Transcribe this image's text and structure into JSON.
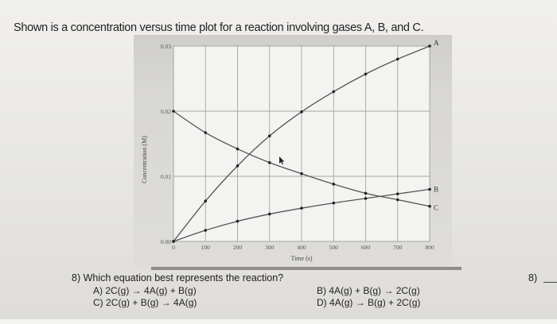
{
  "intro_text": "Shown is a concentration versus time plot for a reaction involving gases A, B, and C.",
  "question": {
    "number_label": "8)",
    "text": "8) Which equation best represents the reaction?",
    "options": [
      {
        "label": "A)",
        "equation": "2C(g) → 4A(g) + B(g)"
      },
      {
        "label": "B)",
        "equation": "4A(g) + B(g) → 2C(g)"
      },
      {
        "label": "C)",
        "equation": "2C(g) + B(g) → 4A(g)"
      },
      {
        "label": "D)",
        "equation": "4A(g) → B(g) + 2C(g)"
      }
    ],
    "answer_blank_label": "8)"
  },
  "chart_data": {
    "type": "line",
    "title": "",
    "xlabel": "Time (s)",
    "ylabel": "Concentration (M)",
    "x": [
      0,
      100,
      200,
      300,
      400,
      500,
      600,
      700,
      800
    ],
    "xlim": [
      0,
      800
    ],
    "ylim": [
      0.0,
      0.03
    ],
    "x_ticks": [
      "0",
      "100",
      "200",
      "300",
      "400",
      "500",
      "600",
      "700",
      "800"
    ],
    "y_ticks": [
      "0.00",
      "0.01",
      "0.02",
      "0.03"
    ],
    "grid": true,
    "legend_position": "inline labels at right end of curves",
    "series": [
      {
        "name": "A",
        "values": [
          0.0,
          0.0062,
          0.0116,
          0.0162,
          0.0199,
          0.023,
          0.0257,
          0.028,
          0.03
        ]
      },
      {
        "name": "B",
        "values": [
          0.0,
          0.0017,
          0.0031,
          0.0042,
          0.0051,
          0.0059,
          0.0066,
          0.0073,
          0.008
        ]
      },
      {
        "name": "C",
        "values": [
          0.02,
          0.0167,
          0.0142,
          0.0121,
          0.0104,
          0.0088,
          0.0074,
          0.0064,
          0.0054
        ]
      }
    ]
  }
}
